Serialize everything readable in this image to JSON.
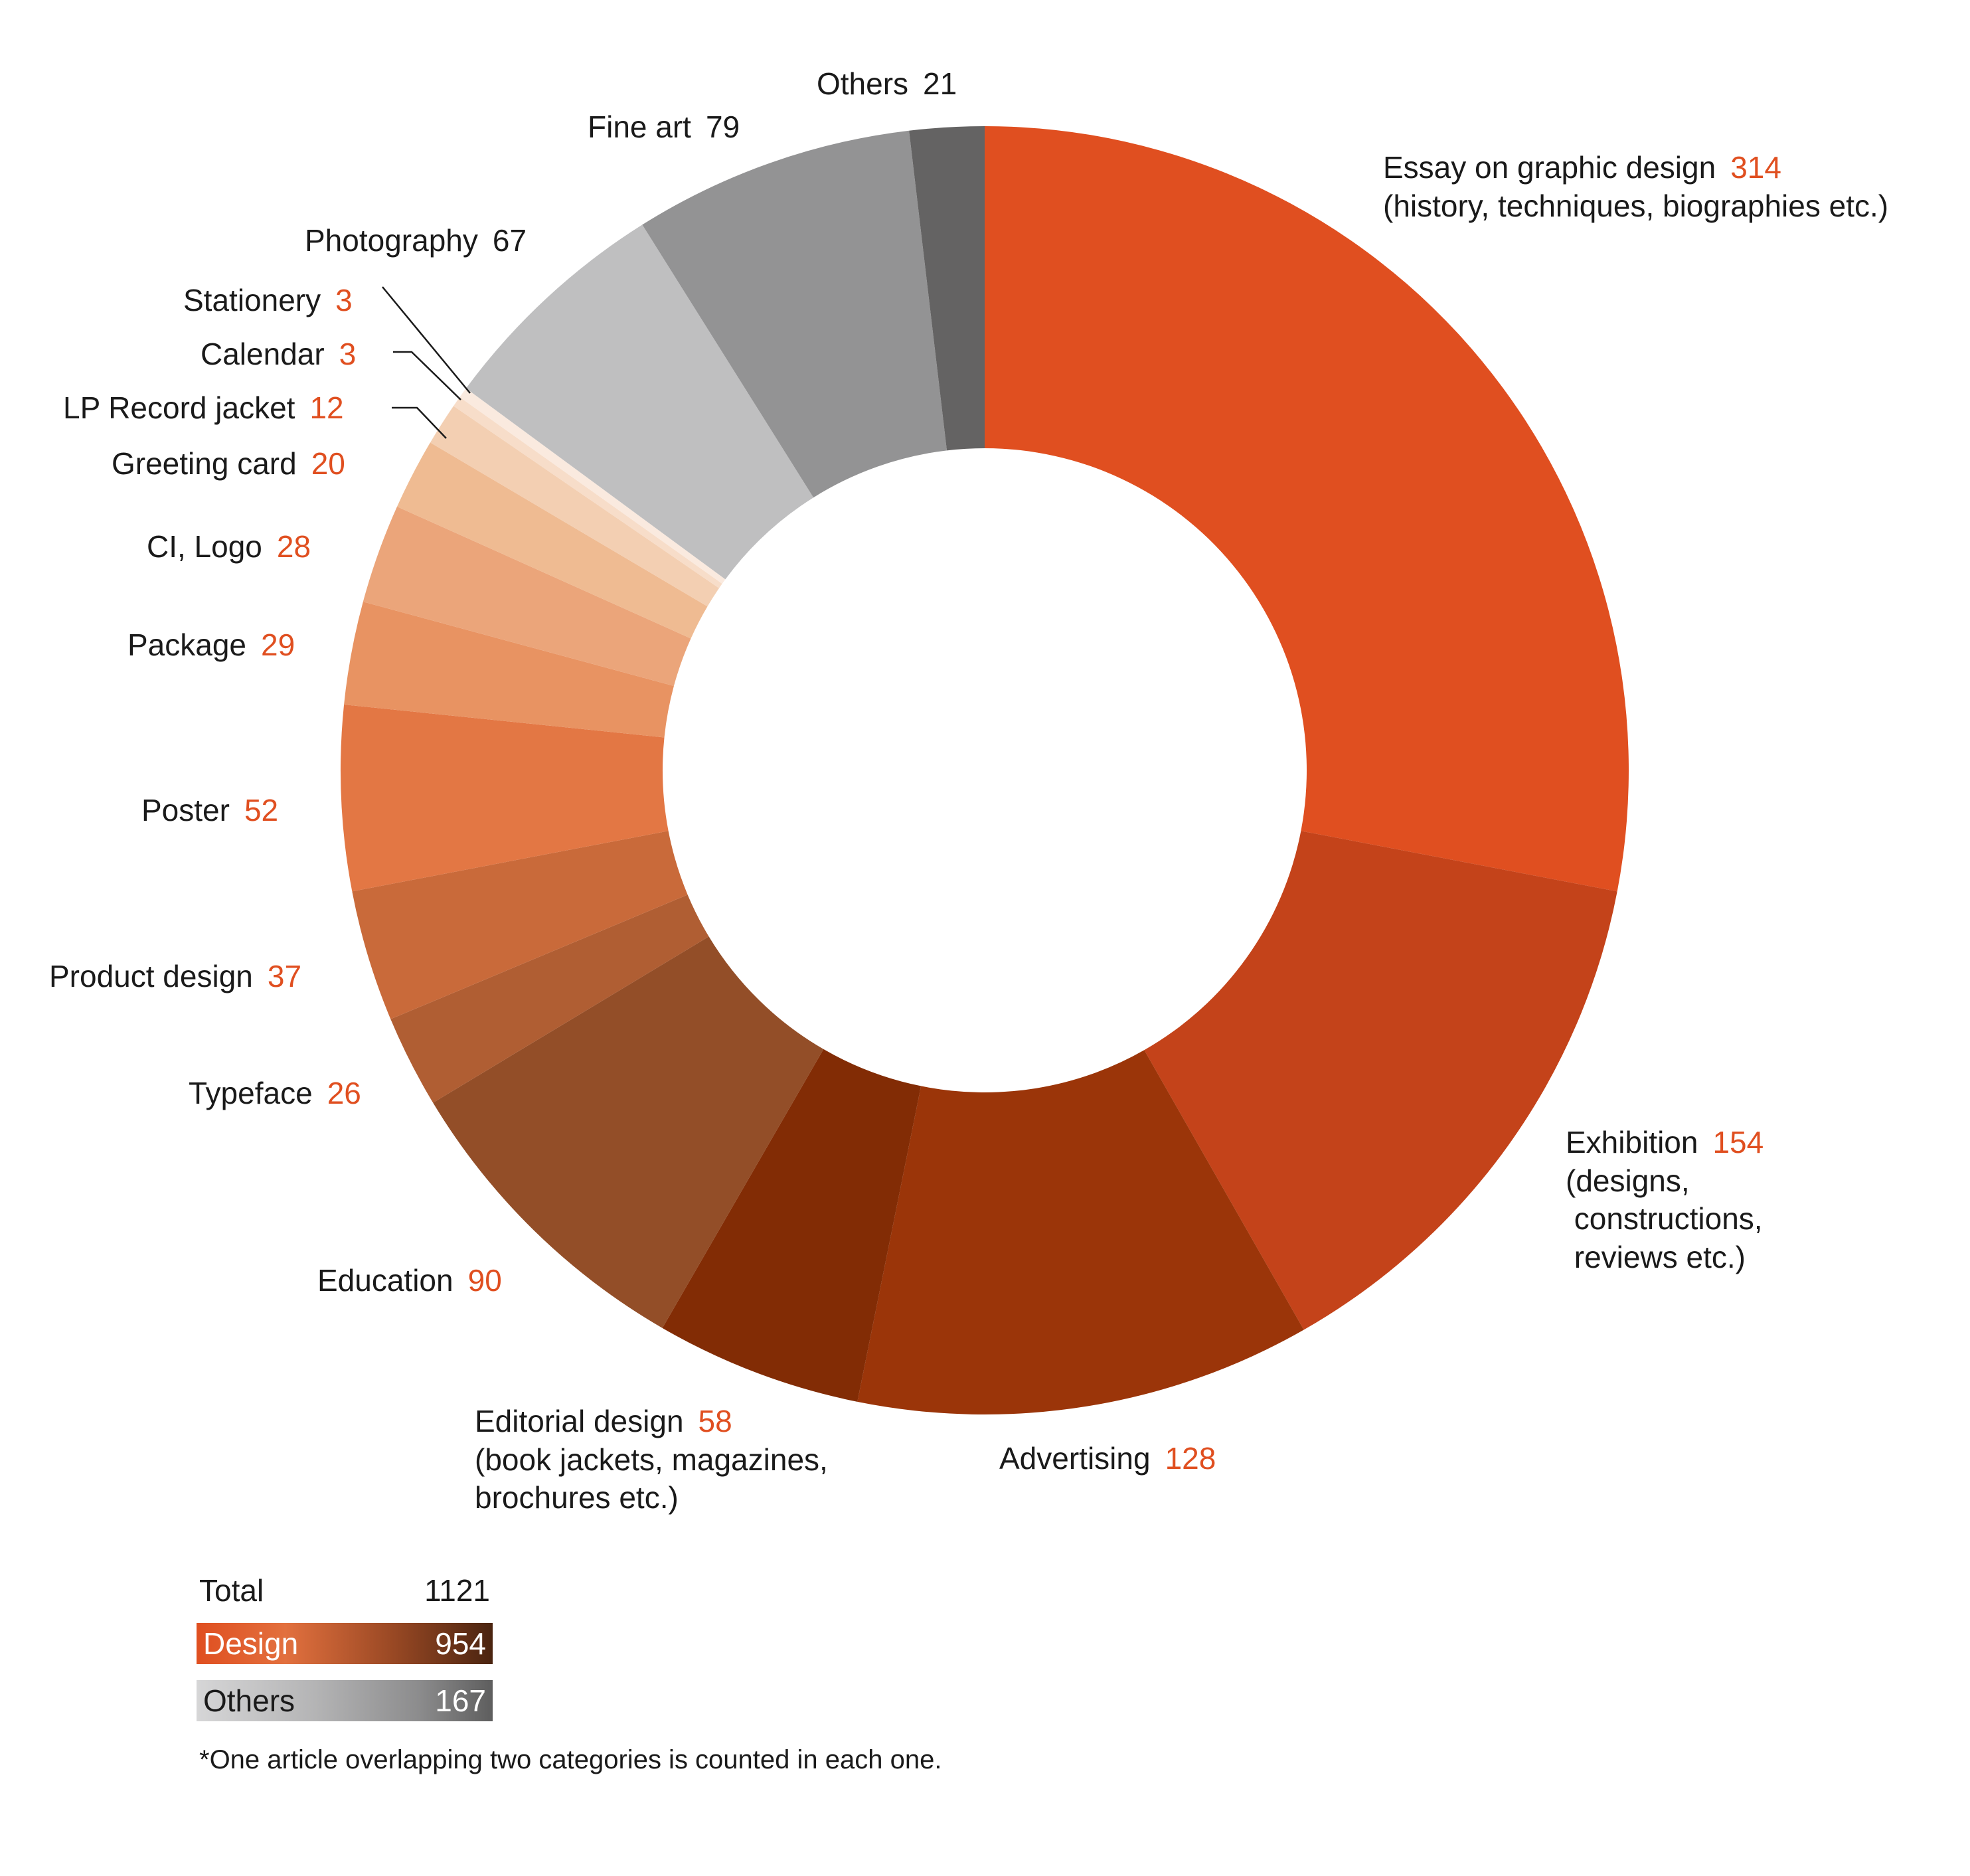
{
  "chart_data": {
    "type": "pie",
    "donut": true,
    "order": "clockwise from 12 o'clock",
    "slices": [
      {
        "label": "Essay on graphic design",
        "value": 314,
        "note": "(history, techniques, biographies etc.)",
        "group": "Design",
        "color": "#e04f20"
      },
      {
        "label": "Exhibition",
        "value": 154,
        "note": "(designs,\n constructions,\n reviews etc.)",
        "group": "Design",
        "color": "#c4431a"
      },
      {
        "label": "Advertising",
        "value": 128,
        "note": "",
        "group": "Design",
        "color": "#9b3509"
      },
      {
        "label": "Editorial design",
        "value": 58,
        "note": "(book jackets, magazines,\nbrochures etc.)",
        "group": "Design",
        "color": "#822c05"
      },
      {
        "label": "Education",
        "value": 90,
        "note": "",
        "group": "Design",
        "color": "#934e28"
      },
      {
        "label": "Typeface",
        "value": 26,
        "note": "",
        "group": "Design",
        "color": "#b05e33"
      },
      {
        "label": "Product design",
        "value": 37,
        "note": "",
        "group": "Design",
        "color": "#c96a3a"
      },
      {
        "label": "Poster",
        "value": 52,
        "note": "",
        "group": "Design",
        "color": "#e37744"
      },
      {
        "label": "Package",
        "value": 29,
        "note": "",
        "group": "Design",
        "color": "#e89362"
      },
      {
        "label": "CI, Logo",
        "value": 28,
        "note": "",
        "group": "Design",
        "color": "#eba57a"
      },
      {
        "label": "Greeting card",
        "value": 20,
        "note": "",
        "group": "Design",
        "color": "#efbb92"
      },
      {
        "label": "LP Record jacket",
        "value": 12,
        "note": "",
        "group": "Design",
        "color": "#f3cfb2"
      },
      {
        "label": "Calendar",
        "value": 3,
        "note": "",
        "group": "Design",
        "color": "#f7ddc9"
      },
      {
        "label": "Stationery",
        "value": 3,
        "note": "",
        "group": "Design",
        "color": "#faeadf"
      },
      {
        "label": "Photography",
        "value": 67,
        "note": "",
        "group": "Others",
        "color": "#bfbfc0"
      },
      {
        "label": "Fine art",
        "value": 79,
        "note": "",
        "group": "Others",
        "color": "#939394"
      },
      {
        "label": "Others",
        "value": 21,
        "note": "",
        "group": "Others",
        "color": "#646363"
      }
    ]
  },
  "legend": {
    "total_label": "Total",
    "total_value": "1121",
    "design_label": "Design",
    "design_value": "954",
    "others_label": "Others",
    "others_value": "167"
  },
  "footnote": "*One article overlapping two categories is counted in each one."
}
